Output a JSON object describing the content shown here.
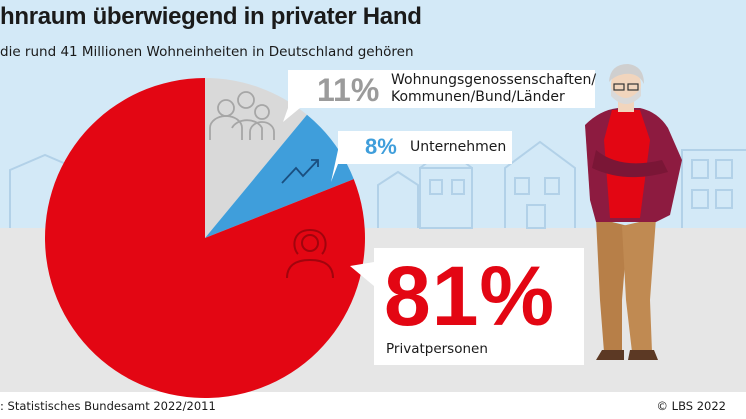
{
  "header": {
    "title": "hnraum überwiegend in privater Hand",
    "subtitle": "die rund 41 Millionen Wohneinheiten in Deutschland gehören"
  },
  "footer": {
    "source": ": Statistisches Bundesamt 2022/2011",
    "copyright": "© LBS 2022"
  },
  "colors": {
    "sky": "#d3e9f7",
    "ground": "#e6e6e6",
    "house": "#bad8ec",
    "red": "#e30613",
    "blue": "#3f9edb",
    "grey": "#d9d9d9",
    "grey_text": "#9b9b9b"
  },
  "icons": [
    "people-group-icon",
    "trend-arrow-icon",
    "person-woman-icon",
    "senior-man-illustration"
  ],
  "chart_data": {
    "type": "pie",
    "title": "hnraum überwiegend in privater Hand",
    "subtitle": "die rund 41 Millionen Wohneinheiten in Deutschland gehören",
    "unit": "%",
    "slices": [
      {
        "label": "Wohnungsgenossenschaften/ Kommunen/Bund/Länder",
        "label_lines": [
          "Wohnungsgenossenschaften/",
          "Kommunen/Bund/Länder"
        ],
        "value": 11,
        "pct_text": "11%",
        "color": "#d9d9d9"
      },
      {
        "label": "Unternehmen",
        "value": 8,
        "pct_text": "8%",
        "color": "#3f9edb"
      },
      {
        "label": "Privatpersonen",
        "value": 81,
        "pct_text": "81%",
        "color": "#e30613"
      }
    ]
  }
}
